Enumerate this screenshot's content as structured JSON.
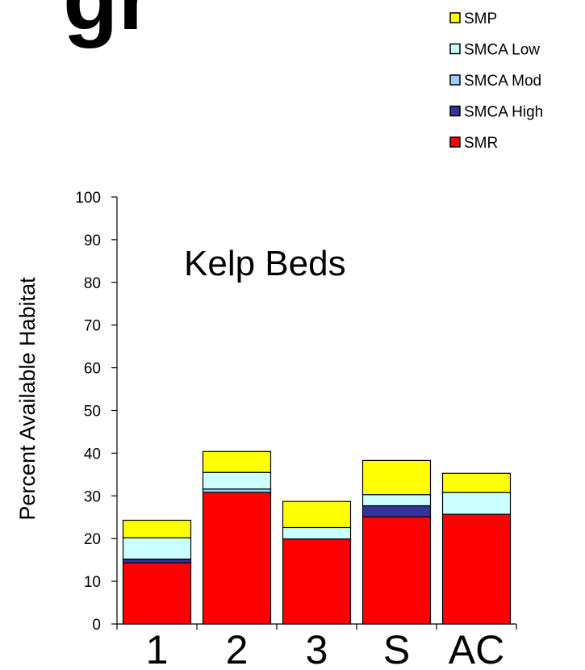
{
  "slide": {
    "heading": "gr                    g"
  },
  "colors": {
    "SMR": "#ff0000",
    "SMCA High": "#333399",
    "SMCA Mod": "#99ccff",
    "SMCA Low": "#ccffff",
    "SMP": "#ffff00"
  },
  "chart_data": {
    "type": "bar",
    "stacked": true,
    "title": "Kelp Beds",
    "xlabel": "",
    "ylabel": "Percent Available Habitat",
    "categories": [
      "1",
      "2",
      "3",
      "S",
      "AC"
    ],
    "ylim": [
      0,
      100
    ],
    "yticks": [
      "0",
      "10",
      "20",
      "30",
      "40",
      "50",
      "60",
      "70",
      "80",
      "90",
      "100"
    ],
    "grid": false,
    "legend_position": "top-right",
    "legend_order": [
      "SMP",
      "SMCA Low",
      "SMCA Mod",
      "SMCA High",
      "SMR"
    ],
    "series": [
      {
        "name": "SMR",
        "values": [
          14.3,
          30.8,
          19.9,
          25.1,
          25.7
        ]
      },
      {
        "name": "SMCA High",
        "values": [
          0.9,
          0.0,
          0.0,
          2.6,
          0.0
        ]
      },
      {
        "name": "SMCA Mod",
        "values": [
          0.0,
          0.8,
          0.0,
          0.0,
          0.0
        ]
      },
      {
        "name": "SMCA Low",
        "values": [
          5.0,
          3.9,
          2.7,
          2.6,
          5.1
        ]
      },
      {
        "name": "SMP",
        "values": [
          4.1,
          4.9,
          6.1,
          8.0,
          4.5
        ]
      }
    ]
  }
}
